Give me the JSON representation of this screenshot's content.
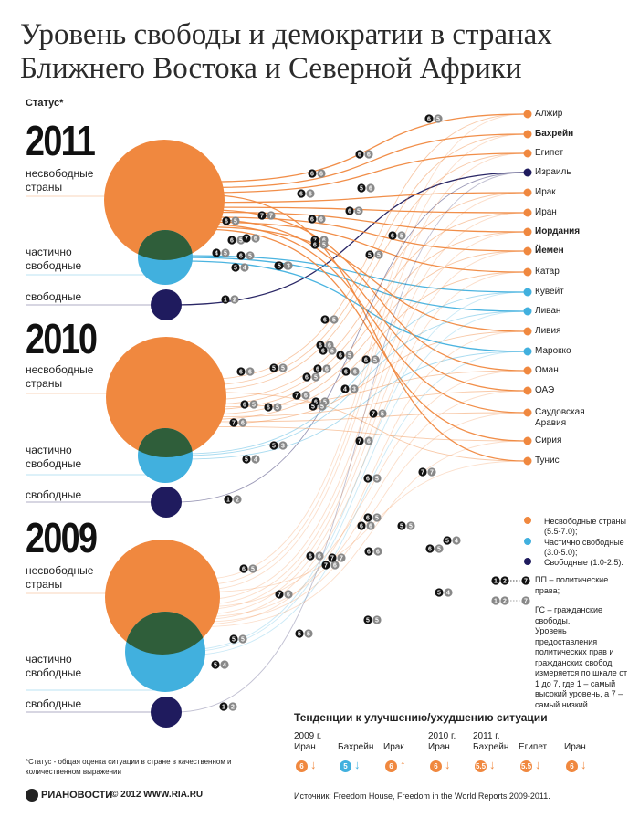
{
  "title": "Уровень свободы и демократии в странах Ближнего Востока и Северной Африки",
  "status_header": "Статус*",
  "years": [
    {
      "label": "2011",
      "cats": {
        "unfree": "несвободные страны",
        "partial": "частично свободные",
        "free": "свободные"
      }
    },
    {
      "label": "2010",
      "cats": {
        "unfree": "несвободные страны",
        "partial": "частично свободные",
        "free": "свободные"
      }
    },
    {
      "label": "2009",
      "cats": {
        "unfree": "несвободные страны",
        "partial": "частично свободные",
        "free": "свободные"
      }
    }
  ],
  "countries": [
    {
      "name": "Алжир",
      "status": "unfree",
      "bold": false
    },
    {
      "name": "Бахрейн",
      "status": "unfree",
      "bold": true
    },
    {
      "name": "Египет",
      "status": "unfree",
      "bold": false
    },
    {
      "name": "Израиль",
      "status": "free",
      "bold": false
    },
    {
      "name": "Ирак",
      "status": "unfree",
      "bold": false
    },
    {
      "name": "Иран",
      "status": "unfree",
      "bold": false
    },
    {
      "name": "Иордания",
      "status": "unfree",
      "bold": true
    },
    {
      "name": "Йемен",
      "status": "unfree",
      "bold": true
    },
    {
      "name": "Катар",
      "status": "unfree",
      "bold": false
    },
    {
      "name": "Кувейт",
      "status": "partial",
      "bold": false
    },
    {
      "name": "Ливан",
      "status": "partial",
      "bold": false
    },
    {
      "name": "Ливия",
      "status": "unfree",
      "bold": false
    },
    {
      "name": "Марокко",
      "status": "partial",
      "bold": false
    },
    {
      "name": "Оман",
      "status": "unfree",
      "bold": false
    },
    {
      "name": "ОАЭ",
      "status": "unfree",
      "bold": false
    },
    {
      "name": "Саудовская Аравия",
      "status": "unfree",
      "bold": false
    },
    {
      "name": "Сирия",
      "status": "unfree",
      "bold": false
    },
    {
      "name": "Тунис",
      "status": "unfree",
      "bold": false
    }
  ],
  "legend": {
    "items": [
      {
        "label": "Несвободные страны  (5.5-7.0);",
        "color": "#f0883f"
      },
      {
        "label": "Частично свободные  (3.0-5.0);",
        "color": "#41b0de"
      },
      {
        "label": "Свободные  (1.0-2.5).",
        "color": "#1f1b5e"
      }
    ],
    "pp": "ПП – политические права;",
    "gs": "ГС – гражданские свободы.",
    "scale_text": "Уровень предоставления политических прав и гражданских свобод измеряется по шкале от 1 до 7, где 1 – самый высокий уровень, а 7 – самый низкий.",
    "badge_range_start": "1",
    "badge_range_mid": "2",
    "badge_range_end": "7"
  },
  "trends": {
    "header": "Тенденции к улучшению/ухудшению ситуации",
    "items": [
      {
        "year": "2009 г.",
        "country": "Иран",
        "value": "6",
        "dir": "↓",
        "color": "#f0883f"
      },
      {
        "year": "",
        "country": "Бахрейн",
        "value": "5",
        "dir": "↓",
        "color": "#41b0de"
      },
      {
        "year": "",
        "country": "Ирак",
        "value": "6",
        "dir": "↑",
        "color": "#f0883f"
      },
      {
        "year": "2010 г.",
        "country": "Иран",
        "value": "6",
        "dir": "↓",
        "color": "#f0883f"
      },
      {
        "year": "2011 г.",
        "country": "Бахрейн",
        "value": "5.5",
        "dir": "↓",
        "color": "#f0883f"
      },
      {
        "year": "",
        "country": "Египет",
        "value": "5.5",
        "dir": "↓",
        "color": "#f0883f"
      },
      {
        "year": "",
        "country": "Иран",
        "value": "6",
        "dir": "↓",
        "color": "#f0883f"
      }
    ]
  },
  "footnote": "*Статус - общая оценка ситуации в стране в качественном и количественном выражении",
  "logo": "РИАНОВОСТИ",
  "copyright": "© 2012 WWW.RIA.RU",
  "source": "Источник: Freedom House, Freedom in the World Reports 2009-2011.",
  "colors": {
    "unfree": "#f0883f",
    "partial": "#41b0de",
    "free": "#1f1b5e",
    "overlap": "#2f5e3a"
  },
  "badges": [
    [
      "6",
      "5"
    ],
    [
      "6",
      "6"
    ],
    [
      "6",
      "6"
    ],
    [
      "6",
      "6"
    ],
    [
      "5",
      "6"
    ],
    [
      "6",
      "6"
    ],
    [
      "6",
      "5"
    ],
    [
      "7",
      "7"
    ],
    [
      "6",
      "5"
    ],
    [
      "7",
      "6"
    ],
    [
      "6",
      "5"
    ],
    [
      "4",
      "5"
    ],
    [
      "5",
      "4"
    ],
    [
      "5",
      "3"
    ],
    [
      "1",
      "2"
    ],
    [
      "7",
      "6"
    ],
    [
      "6",
      "5"
    ],
    [
      "6",
      "5"
    ],
    [
      "5",
      "5"
    ],
    [
      "5",
      "3"
    ],
    [
      "6",
      "5"
    ],
    [
      "6",
      "5"
    ],
    [
      "6",
      "5"
    ],
    [
      "6",
      "6"
    ],
    [
      "5",
      "5"
    ],
    [
      "6",
      "5"
    ],
    [
      "6",
      "6"
    ],
    [
      "6",
      "5"
    ],
    [
      "6",
      "5"
    ],
    [
      "7",
      "6"
    ],
    [
      "6",
      "5"
    ],
    [
      "7",
      "6"
    ],
    [
      "4",
      "3"
    ],
    [
      "5",
      "3"
    ],
    [
      "5",
      "4"
    ],
    [
      "1",
      "2"
    ],
    [
      "7",
      "6"
    ],
    [
      "7",
      "5"
    ],
    [
      "6",
      "6"
    ],
    [
      "6",
      "5"
    ],
    [
      "6",
      "5"
    ],
    [
      "6",
      "6"
    ],
    [
      "5",
      "5"
    ],
    [
      "7",
      "6"
    ],
    [
      "6",
      "5"
    ],
    [
      "6",
      "6"
    ],
    [
      "7",
      "7"
    ],
    [
      "6",
      "6"
    ],
    [
      "6",
      "5"
    ],
    [
      "7",
      "6"
    ],
    [
      "6",
      "5"
    ],
    [
      "5",
      "5"
    ],
    [
      "5",
      "5"
    ],
    [
      "5",
      "4"
    ],
    [
      "5",
      "4"
    ],
    [
      "1",
      "2"
    ],
    [
      "6",
      "5"
    ],
    [
      "5",
      "5"
    ],
    [
      "6",
      "6"
    ],
    [
      "7",
      "7"
    ],
    [
      "5",
      "5"
    ],
    [
      "5",
      "4"
    ]
  ]
}
